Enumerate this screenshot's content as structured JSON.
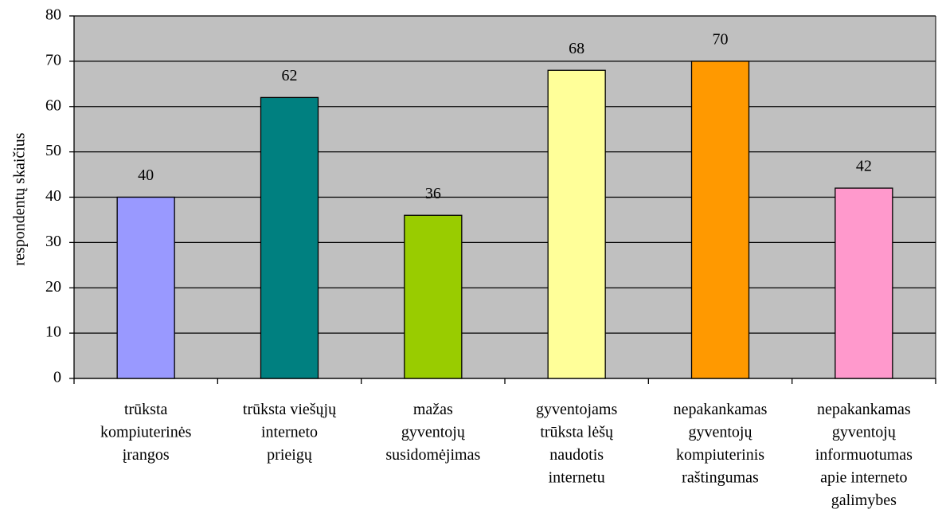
{
  "chart_data": {
    "type": "bar",
    "y_label": "respondentų skaičius",
    "categories": [
      "trūksta\nkompiuterinės\nįrangos",
      "trūksta viešųjų\ninterneto\nprieigų",
      "mažas\ngyventojų\nsusidomėjimas",
      "gyventojams\ntrūksta lėšų\nnaudotis\ninternetu",
      "nepakankamas\ngyventojų\nkompiuterinis\nraštingumas",
      "nepakankamas\ngyventojų\ninformuotumas\napie interneto\ngalimybes"
    ],
    "values": [
      40,
      62,
      36,
      68,
      70,
      42
    ],
    "colors": [
      "#9999ff",
      "#008080",
      "#99cc00",
      "#ffff99",
      "#ff9900",
      "#ff99cc"
    ],
    "ylim": [
      0,
      80
    ],
    "yticks": [
      0,
      10,
      20,
      30,
      40,
      50,
      60,
      70,
      80
    ],
    "grid": true
  }
}
